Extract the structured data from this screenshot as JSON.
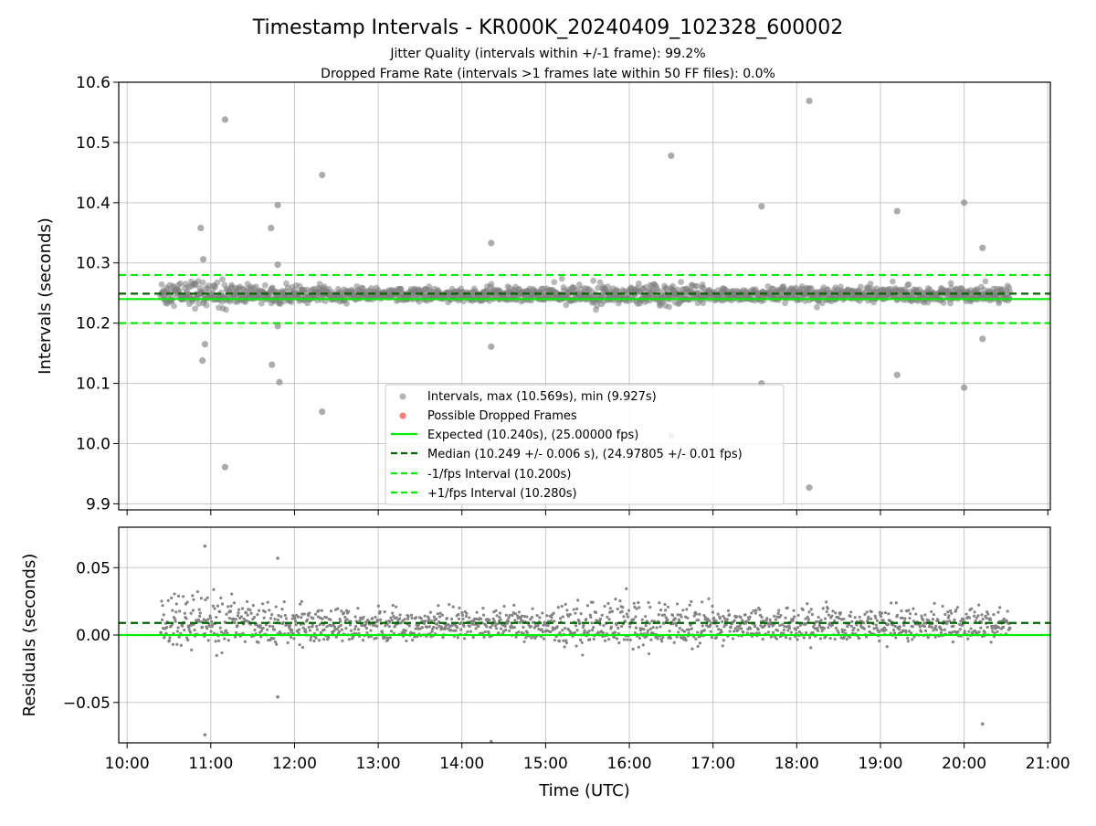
{
  "chart_data": {
    "type": "scatter",
    "title": "Timestamp Intervals - KR000K_20240409_102328_600002",
    "subtitle_lines": [
      "Jitter Quality (intervals within +/-1 frame): 99.2%",
      "Dropped Frame Rate (intervals >1 frames late within 50 FF files): 0.0%"
    ],
    "xlabel": "Time (UTC)",
    "x_ticks": [
      "10:00",
      "11:00",
      "12:00",
      "13:00",
      "14:00",
      "15:00",
      "16:00",
      "17:00",
      "18:00",
      "19:00",
      "20:00",
      "21:00"
    ],
    "xlim_hours": [
      9.9,
      21.03
    ],
    "data_time_range_hours": [
      10.4,
      20.55
    ],
    "grid": true,
    "panels": {
      "intervals": {
        "ylabel": "Intervals (seconds)",
        "ylim": [
          9.89,
          10.6
        ],
        "y_ticks": [
          "9.9",
          "10.0",
          "10.1",
          "10.2",
          "10.3",
          "10.4",
          "10.5",
          "10.6"
        ],
        "y_tick_values": [
          9.9,
          10.0,
          10.1,
          10.2,
          10.3,
          10.4,
          10.5,
          10.6
        ],
        "reference_lines": {
          "expected": 10.24,
          "median": 10.249,
          "minus_1_fps": 10.2,
          "plus_1_fps": 10.28
        },
        "outliers": [
          {
            "t": 10.88,
            "y": 10.358
          },
          {
            "t": 10.91,
            "y": 10.306
          },
          {
            "t": 10.9,
            "y": 10.138
          },
          {
            "t": 10.93,
            "y": 10.165
          },
          {
            "t": 11.17,
            "y": 10.538
          },
          {
            "t": 11.17,
            "y": 9.961
          },
          {
            "t": 11.72,
            "y": 10.358
          },
          {
            "t": 11.73,
            "y": 10.131
          },
          {
            "t": 11.8,
            "y": 10.396
          },
          {
            "t": 11.8,
            "y": 10.297
          },
          {
            "t": 11.8,
            "y": 10.195
          },
          {
            "t": 11.82,
            "y": 10.102
          },
          {
            "t": 12.33,
            "y": 10.446
          },
          {
            "t": 12.33,
            "y": 10.053
          },
          {
            "t": 14.35,
            "y": 10.333
          },
          {
            "t": 14.35,
            "y": 10.161
          },
          {
            "t": 16.5,
            "y": 10.478
          },
          {
            "t": 16.5,
            "y": 10.013
          },
          {
            "t": 17.58,
            "y": 10.394
          },
          {
            "t": 17.58,
            "y": 10.1
          },
          {
            "t": 18.15,
            "y": 10.569
          },
          {
            "t": 18.15,
            "y": 9.927
          },
          {
            "t": 19.2,
            "y": 10.386
          },
          {
            "t": 19.2,
            "y": 10.114
          },
          {
            "t": 20.0,
            "y": 10.4
          },
          {
            "t": 20.0,
            "y": 10.093
          },
          {
            "t": 20.22,
            "y": 10.325
          },
          {
            "t": 20.22,
            "y": 10.174
          }
        ]
      },
      "residuals": {
        "ylabel": "Residuals (seconds)",
        "ylim": [
          -0.08,
          0.08
        ],
        "y_ticks": [
          "−0.05",
          "0.00",
          "0.05"
        ],
        "y_tick_values": [
          -0.05,
          0.0,
          0.05
        ],
        "reference_lines": {
          "zero": 0.0,
          "median": 0.009
        },
        "outliers": [
          {
            "t": 10.93,
            "y": 0.066
          },
          {
            "t": 10.93,
            "y": -0.074
          },
          {
            "t": 11.8,
            "y": 0.057
          },
          {
            "t": 11.8,
            "y": -0.046
          },
          {
            "t": 14.35,
            "y": -0.079
          },
          {
            "t": 20.22,
            "y": -0.066
          }
        ]
      }
    },
    "legend": {
      "placement": "lower-center",
      "entries": [
        {
          "key": "intervals",
          "label": "Intervals, max (10.569s), min (9.927s)"
        },
        {
          "key": "dropped",
          "label": "Possible Dropped Frames"
        },
        {
          "key": "expected",
          "label": "Expected (10.240s), (25.00000 fps)"
        },
        {
          "key": "median",
          "label": "Median (10.249 +/- 0.006 s), (24.97805 +/- 0.01 fps)"
        },
        {
          "key": "minus",
          "label": "-1/fps Interval (10.200s)"
        },
        {
          "key": "plus",
          "label": "+1/fps Interval (10.280s)"
        }
      ]
    },
    "colors": {
      "points": "#808080",
      "dropped": "#ff4040",
      "expected": "#00ee00",
      "median": "#006400",
      "fps_bounds": "#00ee00",
      "grid": "#b0b0b0"
    }
  }
}
